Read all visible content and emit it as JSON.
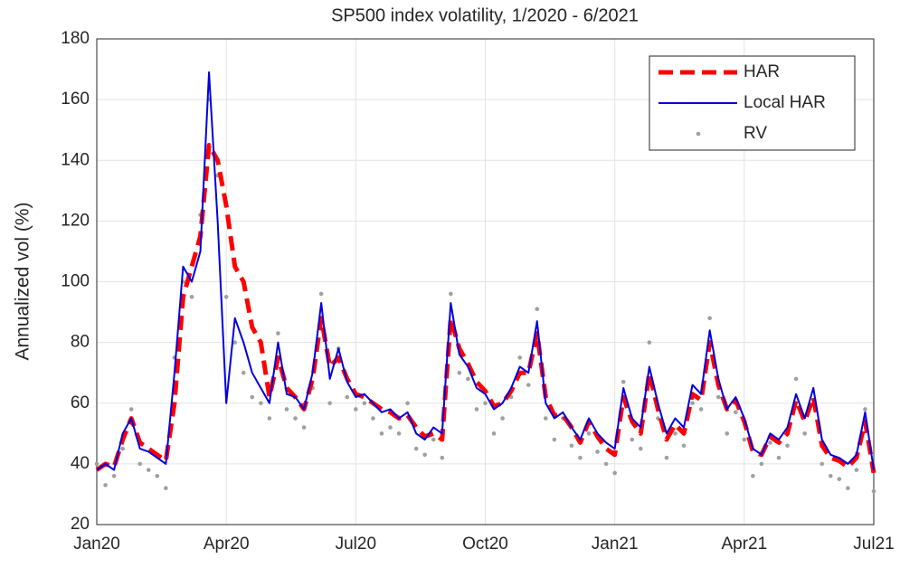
{
  "chart_data": {
    "type": "line",
    "title": "SP500 index volatility, 1/2020 - 6/2021",
    "ylabel": "Annualized vol (%)",
    "x": [
      0,
      0.2,
      0.4,
      0.6,
      0.8,
      1,
      1.2,
      1.4,
      1.6,
      1.8,
      2,
      2.2,
      2.4,
      2.6,
      2.8,
      3,
      3.2,
      3.4,
      3.6,
      3.8,
      4,
      4.2,
      4.4,
      4.6,
      4.8,
      5,
      5.2,
      5.4,
      5.6,
      5.8,
      6,
      6.2,
      6.4,
      6.6,
      6.8,
      7,
      7.2,
      7.4,
      7.6,
      7.8,
      8,
      8.2,
      8.4,
      8.6,
      8.8,
      9,
      9.2,
      9.4,
      9.6,
      9.8,
      10,
      10.2,
      10.4,
      10.6,
      10.8,
      11,
      11.2,
      11.4,
      11.6,
      11.8,
      12,
      12.2,
      12.4,
      12.6,
      12.8,
      13,
      13.2,
      13.4,
      13.6,
      13.8,
      14,
      14.2,
      14.4,
      14.6,
      14.8,
      15,
      15.2,
      15.4,
      15.6,
      15.8,
      16,
      16.2,
      16.4,
      16.6,
      16.8,
      17,
      17.2,
      17.4,
      17.6,
      17.8,
      18
    ],
    "series": [
      {
        "name": "HAR",
        "type": "line",
        "dashed": true,
        "color": "#ff0000",
        "values": [
          38,
          40,
          39,
          48,
          55,
          47,
          45,
          43,
          41,
          60,
          95,
          105,
          115,
          145,
          140,
          125,
          105,
          100,
          85,
          80,
          62,
          75,
          65,
          62,
          58,
          68,
          88,
          72,
          75,
          68,
          63,
          62,
          60,
          58,
          57,
          55,
          56,
          52,
          49,
          50,
          48,
          88,
          78,
          73,
          67,
          64,
          59,
          60,
          64,
          70,
          70,
          83,
          62,
          56,
          56,
          52,
          47,
          54,
          49,
          45,
          43,
          62,
          54,
          50,
          70,
          58,
          48,
          53,
          50,
          63,
          61,
          80,
          66,
          58,
          61,
          54,
          44,
          43,
          49,
          47,
          50,
          61,
          54,
          62,
          46,
          42,
          41,
          39,
          42,
          54,
          37
        ]
      },
      {
        "name": "Local HAR",
        "type": "line",
        "dashed": false,
        "color": "#0000e0",
        "values": [
          38,
          40,
          38,
          50,
          55,
          45,
          44,
          42,
          40,
          70,
          105,
          100,
          110,
          169,
          120,
          60,
          88,
          80,
          70,
          65,
          60,
          80,
          63,
          62,
          58,
          70,
          93,
          68,
          78,
          67,
          62,
          63,
          60,
          57,
          58,
          55,
          57,
          50,
          48,
          52,
          50,
          93,
          76,
          72,
          65,
          63,
          58,
          60,
          65,
          72,
          70,
          87,
          60,
          55,
          57,
          52,
          48,
          55,
          50,
          47,
          45,
          65,
          55,
          52,
          72,
          60,
          50,
          55,
          52,
          66,
          63,
          84,
          68,
          58,
          62,
          55,
          45,
          43,
          50,
          48,
          52,
          63,
          55,
          65,
          48,
          43,
          42,
          40,
          43,
          57,
          38
        ]
      },
      {
        "name": "RV",
        "type": "scatter",
        "color": "#a0a0a0",
        "values": [
          40,
          33,
          36,
          45,
          58,
          40,
          38,
          36,
          32,
          75,
          100,
          95,
          122,
          160,
          135,
          95,
          80,
          70,
          62,
          60,
          55,
          83,
          58,
          55,
          52,
          65,
          96,
          60,
          78,
          62,
          58,
          60,
          55,
          50,
          52,
          50,
          60,
          45,
          43,
          48,
          42,
          96,
          70,
          68,
          58,
          60,
          50,
          55,
          62,
          75,
          66,
          91,
          55,
          48,
          55,
          46,
          42,
          50,
          44,
          40,
          37,
          67,
          48,
          45,
          80,
          55,
          42,
          50,
          46,
          60,
          58,
          88,
          62,
          50,
          57,
          48,
          36,
          40,
          47,
          42,
          46,
          68,
          50,
          60,
          40,
          36,
          35,
          32,
          38,
          58,
          31
        ]
      }
    ],
    "xlim": [
      0,
      18
    ],
    "xticks": [
      {
        "value": 0,
        "label": "Jan20"
      },
      {
        "value": 3,
        "label": "Apr20"
      },
      {
        "value": 6,
        "label": "Jul20"
      },
      {
        "value": 9,
        "label": "Oct20"
      },
      {
        "value": 12,
        "label": "Jan21"
      },
      {
        "value": 15,
        "label": "Apr21"
      },
      {
        "value": 18,
        "label": "Jul21"
      }
    ],
    "ylim": [
      20,
      180
    ],
    "yticks": [
      20,
      40,
      60,
      80,
      100,
      120,
      140,
      160,
      180
    ],
    "grid": true,
    "legend": "northeast"
  }
}
